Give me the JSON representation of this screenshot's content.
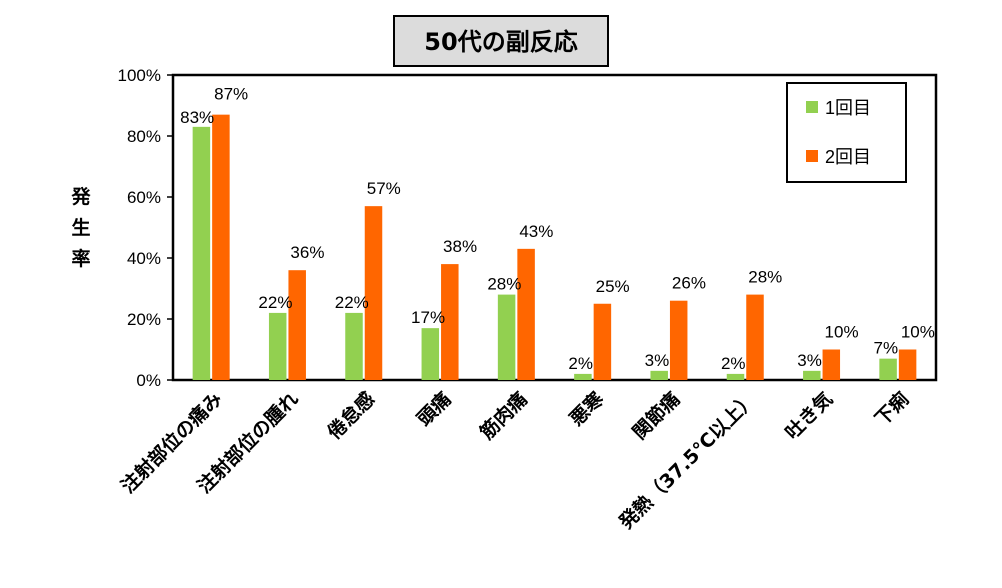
{
  "chart_data": {
    "type": "bar",
    "title": "50代の副反応",
    "ylabel": "発生率",
    "xlabel": "",
    "ylim": [
      0,
      100
    ],
    "yticks": [
      "0%",
      "20%",
      "40%",
      "60%",
      "80%",
      "100%"
    ],
    "ytick_values": [
      0,
      20,
      40,
      60,
      80,
      100
    ],
    "categories": [
      "注射部位の痛み",
      "注射部位の腫れ",
      "倦怠感",
      "頭痛",
      "筋肉痛",
      "悪寒",
      "関節痛",
      "発熱（37.5℃以上）",
      "吐き気",
      "下痢"
    ],
    "series": [
      {
        "name": "1回目",
        "color": "#92D050",
        "values": [
          83,
          22,
          22,
          17,
          28,
          2,
          3,
          2,
          3,
          7
        ],
        "labels": [
          "83%",
          "22%",
          "22%",
          "17%",
          "28%",
          "2%",
          "3%",
          "2%",
          "3%",
          "7%"
        ]
      },
      {
        "name": "2回目",
        "color": "#FF6600",
        "values": [
          87,
          36,
          57,
          38,
          43,
          25,
          26,
          28,
          10,
          10
        ],
        "labels": [
          "87%",
          "36%",
          "57%",
          "38%",
          "43%",
          "25%",
          "26%",
          "28%",
          "10%",
          "10%"
        ]
      }
    ],
    "legend_position": "top-right",
    "grid": false
  }
}
